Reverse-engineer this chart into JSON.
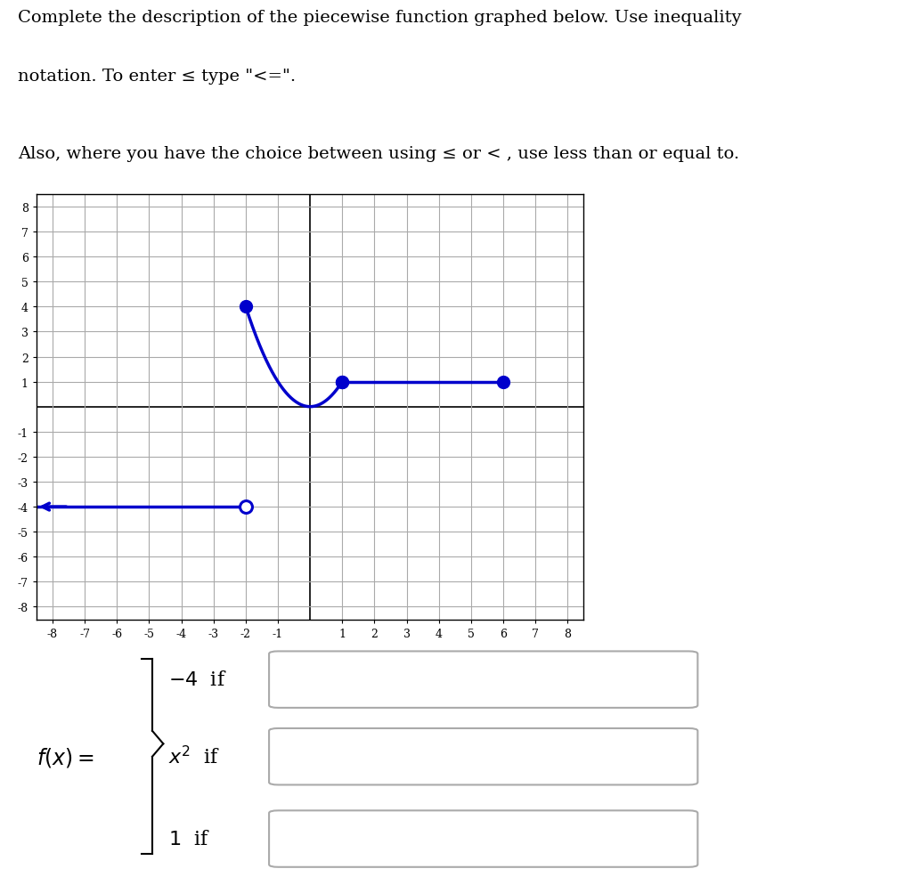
{
  "title_line1": "Complete the description of the piecewise function graphed below. Use inequality",
  "title_line2": "notation. To enter ≤ type \"<=\".",
  "subtitle": "Also, where you have the choice between using ≤ or < , use less than or equal to.",
  "graph_xlim": [
    -8.5,
    8.5
  ],
  "graph_ylim": [
    -8.5,
    8.5
  ],
  "graph_xticks": [
    -8,
    -7,
    -6,
    -5,
    -4,
    -3,
    -2,
    -1,
    1,
    2,
    3,
    4,
    5,
    6,
    7,
    8
  ],
  "graph_yticks": [
    -8,
    -7,
    -6,
    -5,
    -4,
    -3,
    -2,
    -1,
    1,
    2,
    3,
    4,
    5,
    6,
    7,
    8
  ],
  "line_color": "#0000cc",
  "line_width": 2.5,
  "background_color": "#ffffff",
  "grid_color": "#aaaaaa",
  "axis_color": "#000000",
  "text_color": "#000000"
}
